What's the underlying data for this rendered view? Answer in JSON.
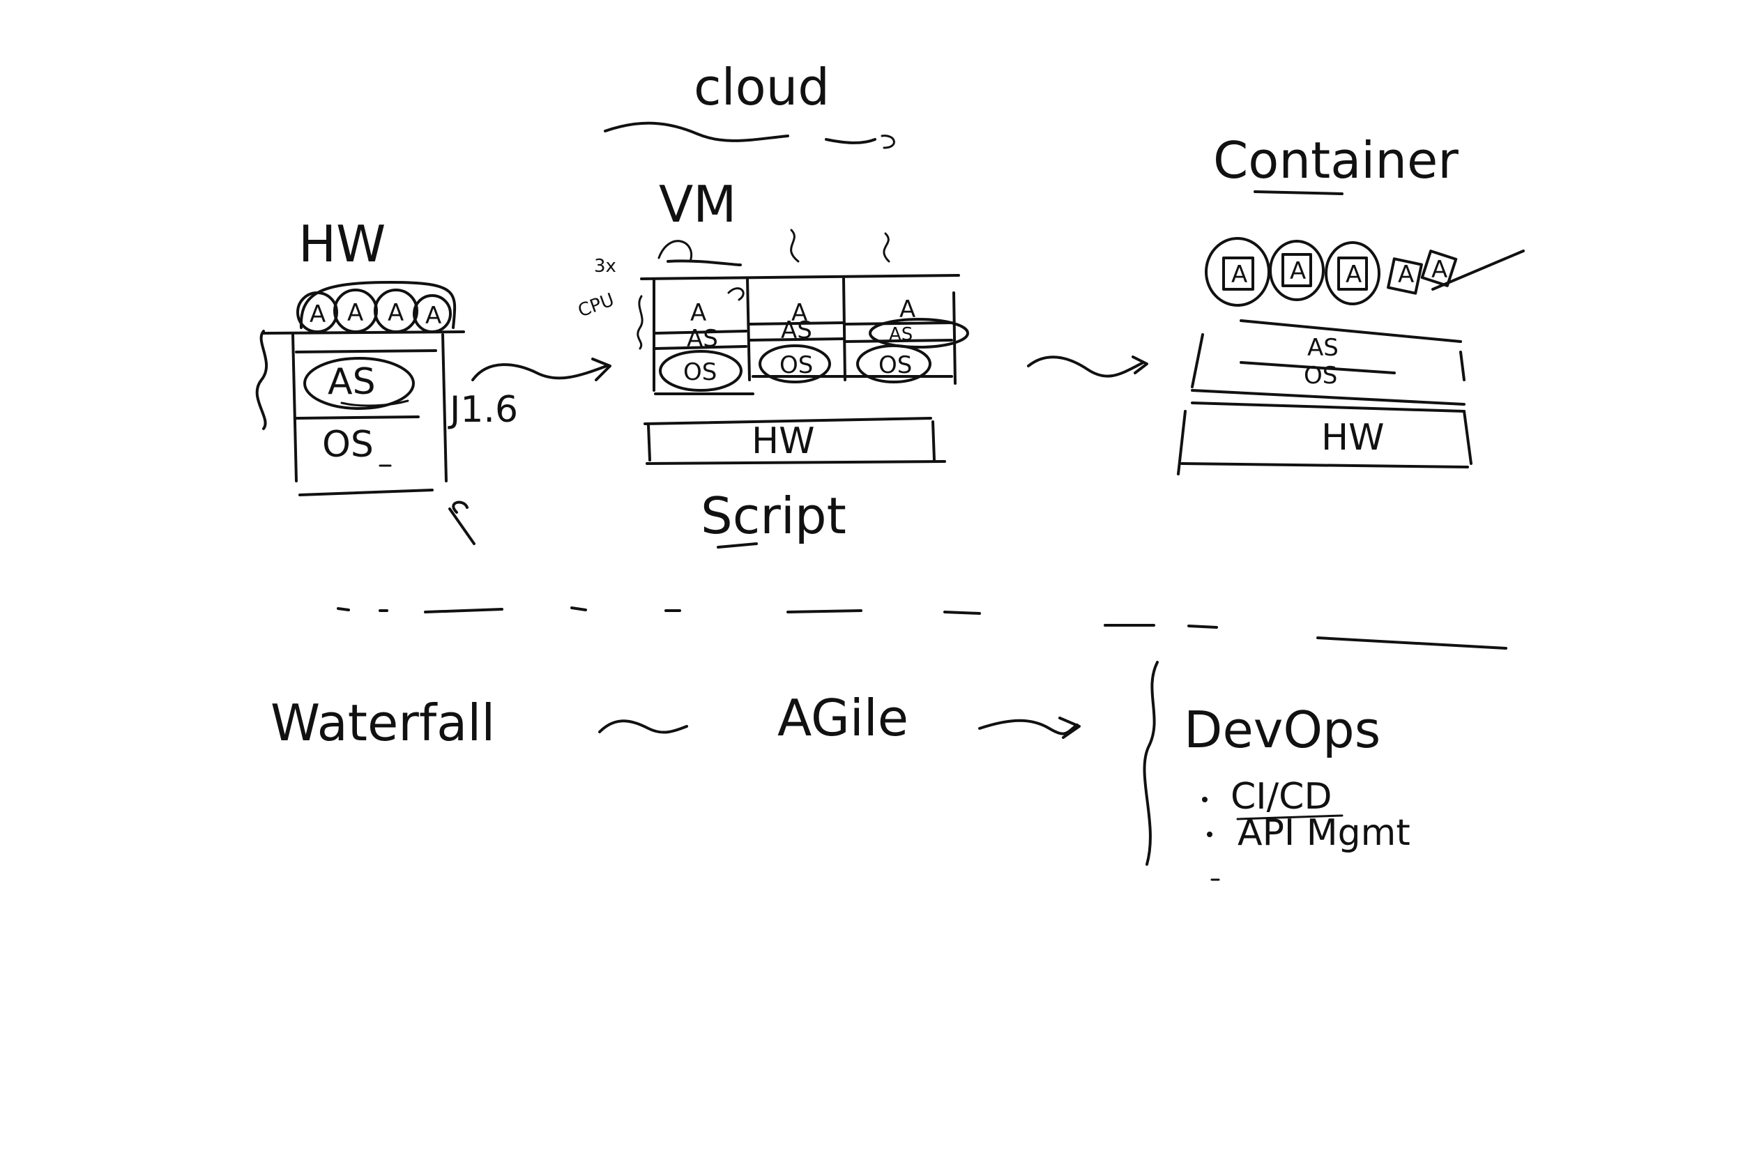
{
  "labels": {
    "cloud": "cloud",
    "vm": "VM",
    "hw_title": "HW",
    "container": "Container",
    "script": "Script",
    "j16": "J1.6",
    "cpu": "CPU",
    "waterfall": "Waterfall",
    "agile": "AGile",
    "devops": "DevOps"
  },
  "hw_stack": {
    "apps": [
      "A",
      "A",
      "A",
      "A"
    ],
    "as": "AS",
    "os": "OS"
  },
  "vm_stack": {
    "columns": [
      {
        "app": "A",
        "as": "AS",
        "os": "OS"
      },
      {
        "app": "A",
        "as": "AS",
        "os": "OS"
      },
      {
        "app": "A",
        "as": "AS",
        "os": "OS"
      }
    ],
    "hw": "HW"
  },
  "container_stack": {
    "apps": [
      "A",
      "A",
      "A",
      "A",
      "A"
    ],
    "as": "AS",
    "os": "OS",
    "hw": "HW"
  },
  "devops_items": [
    "CI/CD",
    "API Mgmt",
    ""
  ]
}
